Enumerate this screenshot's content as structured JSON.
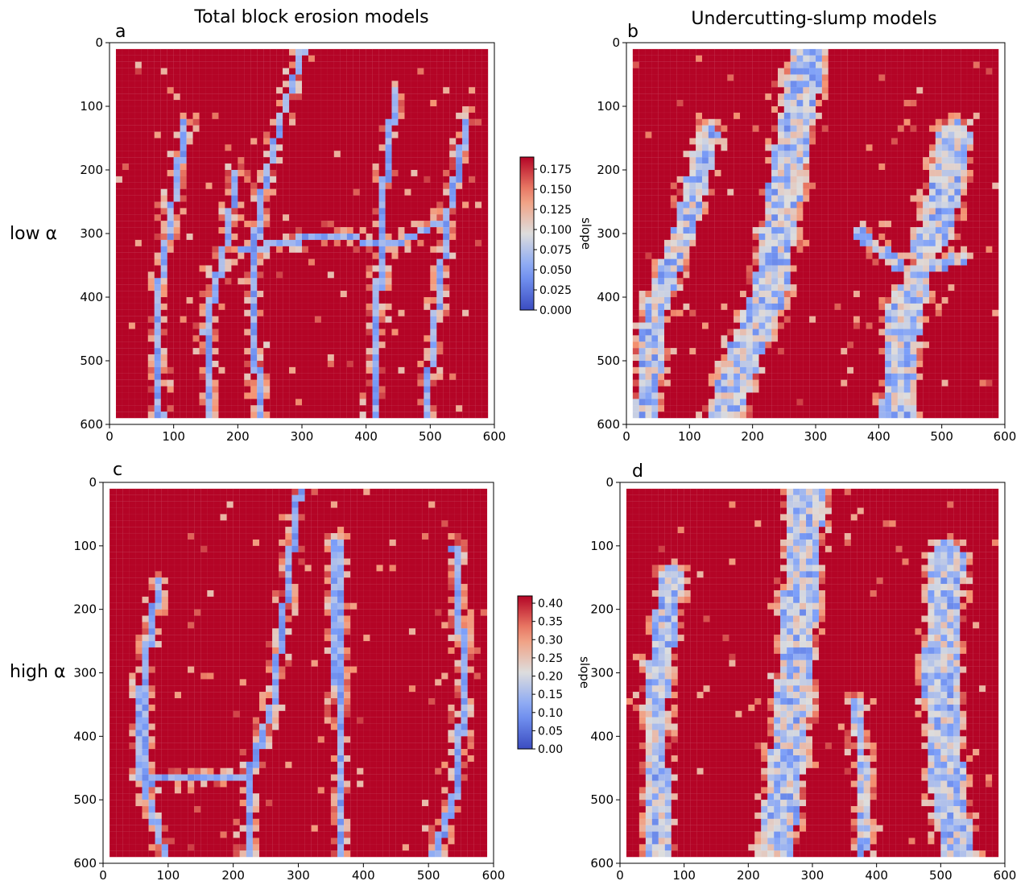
{
  "column_titles": [
    "Total block erosion models",
    "Undercutting-slump models"
  ],
  "row_labels": [
    "low α",
    "high α"
  ],
  "chart_data": [
    {
      "type": "heatmap",
      "panel": "a",
      "row": 0,
      "col": 0,
      "xlim": [
        0,
        600
      ],
      "ylim": [
        600,
        0
      ],
      "xticks": [
        0,
        100,
        200,
        300,
        400,
        500,
        600
      ],
      "yticks": [
        0,
        100,
        200,
        300,
        400,
        500,
        600
      ],
      "grid_size": 58,
      "style": "channels-thin",
      "seed": 11,
      "colorbar": {
        "label": "slope",
        "vmin": 0,
        "vmax": 0.19,
        "ticks": [
          0.0,
          0.025,
          0.05,
          0.075,
          0.1,
          0.125,
          0.15,
          0.175
        ]
      },
      "colormap": "coolwarm",
      "channels": [
        {
          "path": [
            [
              302,
              10
            ],
            [
              270,
              110
            ],
            [
              235,
              250
            ],
            [
              222,
              380
            ],
            [
              235,
              600
            ]
          ],
          "width": 1
        },
        {
          "path": [
            [
              200,
              200
            ],
            [
              180,
              320
            ],
            [
              150,
              450
            ],
            [
              160,
              600
            ]
          ],
          "width": 1
        },
        {
          "path": [
            [
              120,
              120
            ],
            [
              100,
              250
            ],
            [
              75,
              400
            ],
            [
              80,
              600
            ]
          ],
          "width": 1
        },
        {
          "path": [
            [
              445,
              80
            ],
            [
              430,
              210
            ],
            [
              420,
              380
            ],
            [
              410,
              600
            ]
          ],
          "width": 1
        },
        {
          "path": [
            [
              560,
              120
            ],
            [
              530,
              260
            ],
            [
              510,
              420
            ],
            [
              490,
              600
            ]
          ],
          "width": 1
        },
        {
          "path": [
            [
              200,
              330
            ],
            [
              340,
              300
            ],
            [
              440,
              320
            ],
            [
              520,
              280
            ]
          ],
          "width": 1
        }
      ]
    },
    {
      "type": "heatmap",
      "panel": "b",
      "row": 0,
      "col": 1,
      "xlim": [
        0,
        600
      ],
      "ylim": [
        600,
        0
      ],
      "xticks": [
        0,
        100,
        200,
        300,
        400,
        500,
        600
      ],
      "yticks": [
        0,
        100,
        200,
        300,
        400,
        500,
        600
      ],
      "grid_size": 58,
      "style": "channels-wide",
      "seed": 23,
      "colormap": "coolwarm",
      "channels": [
        {
          "path": [
            [
              290,
              10
            ],
            [
              255,
              200
            ],
            [
              230,
              380
            ],
            [
              175,
              520
            ],
            [
              150,
              600
            ]
          ],
          "width": 3
        },
        {
          "path": [
            [
              130,
              150
            ],
            [
              90,
              300
            ],
            [
              45,
              420
            ],
            [
              30,
              600
            ]
          ],
          "width": 2
        },
        {
          "path": [
            [
              520,
              150
            ],
            [
              490,
              300
            ],
            [
              440,
              420
            ],
            [
              430,
              600
            ]
          ],
          "width": 3
        },
        {
          "path": [
            [
              370,
              300
            ],
            [
              445,
              360
            ],
            [
              530,
              340
            ]
          ],
          "width": 1
        }
      ]
    },
    {
      "type": "heatmap",
      "panel": "c",
      "row": 1,
      "col": 0,
      "xlim": [
        0,
        600
      ],
      "ylim": [
        600,
        0
      ],
      "xticks": [
        0,
        100,
        200,
        300,
        400,
        500,
        600
      ],
      "yticks": [
        0,
        100,
        200,
        300,
        400,
        500,
        600
      ],
      "grid_size": 58,
      "style": "channels-thin",
      "seed": 37,
      "colorbar": {
        "label": "slope",
        "vmin": 0,
        "vmax": 0.42,
        "ticks": [
          0.0,
          0.05,
          0.1,
          0.15,
          0.2,
          0.25,
          0.3,
          0.35,
          0.4
        ]
      },
      "colormap": "coolwarm",
      "channels": [
        {
          "path": [
            [
              302,
              10
            ],
            [
              285,
              150
            ],
            [
              260,
              350
            ],
            [
              225,
              460
            ],
            [
              220,
              600
            ]
          ],
          "width": 1
        },
        {
          "path": [
            [
              85,
              160
            ],
            [
              60,
              320
            ],
            [
              60,
              470
            ],
            [
              100,
              600
            ]
          ],
          "width": 1
        },
        {
          "path": [
            [
              360,
              90
            ],
            [
              360,
              300
            ],
            [
              365,
              450
            ],
            [
              365,
              600
            ]
          ],
          "width": 1
        },
        {
          "path": [
            [
              540,
              100
            ],
            [
              555,
              300
            ],
            [
              545,
              480
            ],
            [
              505,
              600
            ]
          ],
          "width": 1
        },
        {
          "path": [
            [
              60,
              470
            ],
            [
              220,
              465
            ]
          ],
          "width": 1
        }
      ]
    },
    {
      "type": "heatmap",
      "panel": "d",
      "row": 1,
      "col": 1,
      "xlim": [
        0,
        600
      ],
      "ylim": [
        600,
        0
      ],
      "xticks": [
        0,
        100,
        200,
        300,
        400,
        500,
        600
      ],
      "yticks": [
        0,
        100,
        200,
        300,
        400,
        500,
        600
      ],
      "grid_size": 58,
      "style": "channels-wide",
      "seed": 53,
      "colormap": "coolwarm",
      "channels": [
        {
          "path": [
            [
              292,
              10
            ],
            [
              280,
              200
            ],
            [
              265,
              400
            ],
            [
              240,
              600
            ]
          ],
          "width": 3
        },
        {
          "path": [
            [
              80,
              150
            ],
            [
              55,
              350
            ],
            [
              60,
              600
            ]
          ],
          "width": 2
        },
        {
          "path": [
            [
              510,
              120
            ],
            [
              500,
              300
            ],
            [
              510,
              480
            ],
            [
              530,
              600
            ]
          ],
          "width": 3
        },
        {
          "path": [
            [
              370,
              350
            ],
            [
              380,
              480
            ],
            [
              375,
              600
            ]
          ],
          "width": 1
        }
      ]
    }
  ]
}
